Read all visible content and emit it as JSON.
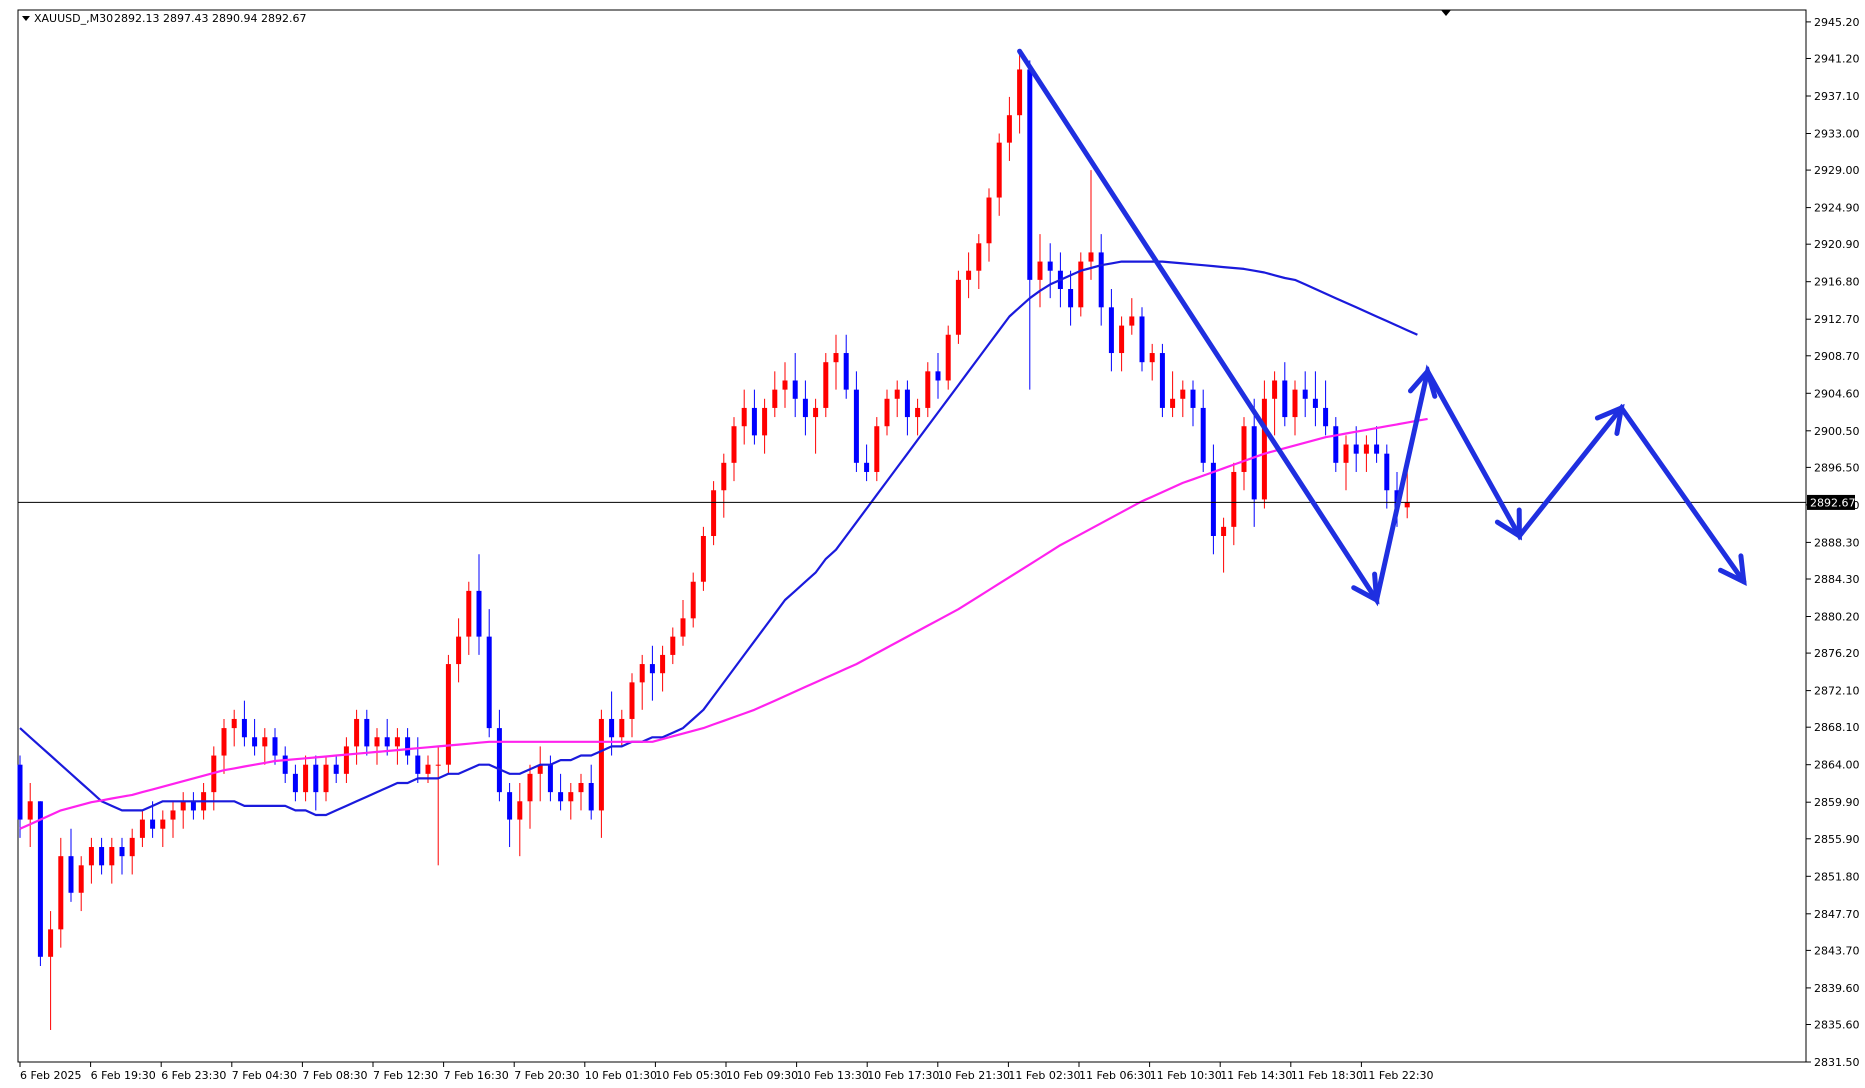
{
  "header": {
    "symbol": "XAUUSD_,M30",
    "ohlc": "2892.13 2897.43 2890.94 2892.67"
  },
  "current_price_label": "2892.67",
  "colors": {
    "bull": "#ff0000",
    "bear": "#0000ff",
    "ma_fast": "#1a1adc",
    "ma_slow": "#ff22ee",
    "projection": "#1f2fe0",
    "price_line": "#000000"
  },
  "chart_data": {
    "type": "candlestick",
    "title": "",
    "symbol": "XAUUSD",
    "timeframe": "M30",
    "xlabel": "",
    "ylabel": "",
    "ylim": [
      2831.5,
      2946.5
    ],
    "yticks": [
      "2945.20",
      "2941.20",
      "2937.10",
      "2933.00",
      "2929.00",
      "2924.90",
      "2920.90",
      "2916.80",
      "2912.70",
      "2908.70",
      "2904.60",
      "2900.50",
      "2896.50",
      "2892.40",
      "2888.30",
      "2884.30",
      "2880.20",
      "2876.20",
      "2872.10",
      "2868.10",
      "2864.00",
      "2859.90",
      "2855.90",
      "2851.80",
      "2847.70",
      "2843.70",
      "2839.60",
      "2835.60",
      "2831.50"
    ],
    "xticks": [
      "6 Feb 2025",
      "6 Feb 19:30",
      "6 Feb 23:30",
      "7 Feb 04:30",
      "7 Feb 08:30",
      "7 Feb 12:30",
      "7 Feb 16:30",
      "7 Feb 20:30",
      "10 Feb 01:30",
      "10 Feb 05:30",
      "10 Feb 09:30",
      "10 Feb 13:30",
      "10 Feb 17:30",
      "10 Feb 21:30",
      "11 Feb 02:30",
      "11 Feb 06:30",
      "11 Feb 10:30",
      "11 Feb 14:30",
      "11 Feb 18:30",
      "11 Feb 22:30"
    ],
    "current_price": 2892.67,
    "candles": [
      [
        2864,
        2865,
        2856,
        2858
      ],
      [
        2858,
        2862,
        2855,
        2860
      ],
      [
        2860,
        2860,
        2842,
        2843
      ],
      [
        2843,
        2848,
        2835,
        2846
      ],
      [
        2846,
        2856,
        2844,
        2854
      ],
      [
        2854,
        2857,
        2849,
        2850
      ],
      [
        2850,
        2854,
        2848,
        2853
      ],
      [
        2853,
        2856,
        2851,
        2855
      ],
      [
        2855,
        2856,
        2852,
        2853
      ],
      [
        2853,
        2856,
        2851,
        2855
      ],
      [
        2855,
        2856,
        2852,
        2854
      ],
      [
        2854,
        2857,
        2852,
        2856
      ],
      [
        2856,
        2859,
        2855,
        2858
      ],
      [
        2858,
        2860,
        2856,
        2857
      ],
      [
        2857,
        2859,
        2855,
        2858
      ],
      [
        2858,
        2860,
        2856,
        2859
      ],
      [
        2859,
        2861,
        2857,
        2860
      ],
      [
        2860,
        2861,
        2858,
        2859
      ],
      [
        2859,
        2862,
        2858,
        2861
      ],
      [
        2861,
        2866,
        2859,
        2865
      ],
      [
        2865,
        2869,
        2863,
        2868
      ],
      [
        2868,
        2870,
        2866,
        2869
      ],
      [
        2869,
        2871,
        2866,
        2867
      ],
      [
        2867,
        2869,
        2865,
        2866
      ],
      [
        2866,
        2868,
        2864,
        2867
      ],
      [
        2867,
        2868,
        2864,
        2865
      ],
      [
        2865,
        2866,
        2862,
        2863
      ],
      [
        2863,
        2864,
        2860,
        2861
      ],
      [
        2861,
        2865,
        2860,
        2864
      ],
      [
        2864,
        2865,
        2859,
        2861
      ],
      [
        2861,
        2865,
        2860,
        2864
      ],
      [
        2864,
        2865,
        2862,
        2863
      ],
      [
        2863,
        2867,
        2862,
        2866
      ],
      [
        2866,
        2870,
        2864,
        2869
      ],
      [
        2869,
        2870,
        2865,
        2866
      ],
      [
        2866,
        2868,
        2864,
        2867
      ],
      [
        2867,
        2869,
        2865,
        2866
      ],
      [
        2866,
        2868,
        2864,
        2867
      ],
      [
        2867,
        2868,
        2864,
        2865
      ],
      [
        2865,
        2867,
        2862,
        2863
      ],
      [
        2863,
        2865,
        2862,
        2864
      ],
      [
        2864,
        2866,
        2853,
        2864
      ],
      [
        2864,
        2876,
        2863,
        2875
      ],
      [
        2875,
        2880,
        2873,
        2878
      ],
      [
        2878,
        2884,
        2876,
        2883
      ],
      [
        2883,
        2887,
        2876,
        2878
      ],
      [
        2878,
        2881,
        2867,
        2868
      ],
      [
        2868,
        2870,
        2860,
        2861
      ],
      [
        2861,
        2862,
        2855,
        2858
      ],
      [
        2858,
        2862,
        2854,
        2860
      ],
      [
        2860,
        2864,
        2857,
        2863
      ],
      [
        2863,
        2866,
        2860,
        2864
      ],
      [
        2864,
        2865,
        2860,
        2861
      ],
      [
        2861,
        2863,
        2859,
        2860
      ],
      [
        2860,
        2862,
        2858,
        2861
      ],
      [
        2861,
        2863,
        2859,
        2862
      ],
      [
        2862,
        2864,
        2858,
        2859
      ],
      [
        2859,
        2870,
        2856,
        2869
      ],
      [
        2869,
        2872,
        2865,
        2867
      ],
      [
        2867,
        2870,
        2866,
        2869
      ],
      [
        2869,
        2874,
        2867,
        2873
      ],
      [
        2873,
        2876,
        2870,
        2875
      ],
      [
        2875,
        2877,
        2871,
        2874
      ],
      [
        2874,
        2877,
        2872,
        2876
      ],
      [
        2876,
        2879,
        2875,
        2878
      ],
      [
        2878,
        2882,
        2877,
        2880
      ],
      [
        2880,
        2885,
        2879,
        2884
      ],
      [
        2884,
        2890,
        2883,
        2889
      ],
      [
        2889,
        2895,
        2888,
        2894
      ],
      [
        2894,
        2898,
        2891,
        2897
      ],
      [
        2897,
        2902,
        2895,
        2901
      ],
      [
        2901,
        2905,
        2899,
        2903
      ],
      [
        2903,
        2905,
        2899,
        2900
      ],
      [
        2900,
        2904,
        2898,
        2903
      ],
      [
        2903,
        2907,
        2902,
        2905
      ],
      [
        2905,
        2908,
        2903,
        2906
      ],
      [
        2906,
        2909,
        2902,
        2904
      ],
      [
        2904,
        2906,
        2900,
        2902
      ],
      [
        2902,
        2904,
        2898,
        2903
      ],
      [
        2903,
        2909,
        2902,
        2908
      ],
      [
        2908,
        2911,
        2905,
        2909
      ],
      [
        2909,
        2911,
        2904,
        2905
      ],
      [
        2905,
        2907,
        2896,
        2897
      ],
      [
        2897,
        2899,
        2895,
        2896
      ],
      [
        2896,
        2902,
        2895,
        2901
      ],
      [
        2901,
        2905,
        2900,
        2904
      ],
      [
        2904,
        2906,
        2902,
        2905
      ],
      [
        2905,
        2906,
        2900,
        2902
      ],
      [
        2902,
        2904,
        2900,
        2903
      ],
      [
        2903,
        2908,
        2902,
        2907
      ],
      [
        2907,
        2909,
        2904,
        2906
      ],
      [
        2906,
        2912,
        2905,
        2911
      ],
      [
        2911,
        2918,
        2910,
        2917
      ],
      [
        2917,
        2920,
        2915,
        2918
      ],
      [
        2918,
        2922,
        2916,
        2921
      ],
      [
        2921,
        2927,
        2919,
        2926
      ],
      [
        2926,
        2933,
        2924,
        2932
      ],
      [
        2932,
        2937,
        2930,
        2935
      ],
      [
        2935,
        2942,
        2933,
        2940
      ],
      [
        2940,
        2941,
        2905,
        2917
      ],
      [
        2917,
        2922,
        2914,
        2919
      ],
      [
        2919,
        2921,
        2915,
        2918
      ],
      [
        2918,
        2920,
        2914,
        2916
      ],
      [
        2916,
        2918,
        2912,
        2914
      ],
      [
        2914,
        2920,
        2913,
        2919
      ],
      [
        2919,
        2929,
        2917,
        2920
      ],
      [
        2920,
        2922,
        2912,
        2914
      ],
      [
        2914,
        2916,
        2907,
        2909
      ],
      [
        2909,
        2913,
        2907,
        2912
      ],
      [
        2912,
        2915,
        2911,
        2913
      ],
      [
        2913,
        2914,
        2907,
        2908
      ],
      [
        2908,
        2910,
        2906,
        2909
      ],
      [
        2909,
        2910,
        2902,
        2903
      ],
      [
        2903,
        2907,
        2902,
        2904
      ],
      [
        2904,
        2906,
        2902,
        2905
      ],
      [
        2905,
        2906,
        2901,
        2903
      ],
      [
        2903,
        2905,
        2896,
        2897
      ],
      [
        2897,
        2899,
        2887,
        2889
      ],
      [
        2889,
        2891,
        2885,
        2890
      ],
      [
        2890,
        2897,
        2888,
        2896
      ],
      [
        2896,
        2902,
        2894,
        2901
      ],
      [
        2901,
        2904,
        2890,
        2893
      ],
      [
        2893,
        2906,
        2892,
        2904
      ],
      [
        2904,
        2907,
        2900,
        2906
      ],
      [
        2906,
        2908,
        2901,
        2902
      ],
      [
        2902,
        2906,
        2900,
        2905
      ],
      [
        2905,
        2907,
        2902,
        2904
      ],
      [
        2904,
        2907,
        2901,
        2903
      ],
      [
        2903,
        2906,
        2900,
        2901
      ],
      [
        2901,
        2902,
        2896,
        2897
      ],
      [
        2897,
        2900,
        2894,
        2899
      ],
      [
        2899,
        2901,
        2896,
        2898
      ],
      [
        2898,
        2900,
        2896,
        2899
      ],
      [
        2899,
        2901,
        2897,
        2898
      ],
      [
        2898,
        2899,
        2892,
        2894
      ],
      [
        2894,
        2896,
        2890,
        2892
      ],
      [
        2892.13,
        2897.43,
        2890.94,
        2892.67
      ]
    ],
    "series": [
      {
        "values": [
          2868,
          2867,
          2866,
          2865,
          2864,
          2863,
          2862,
          2861,
          2860,
          2859.5,
          2859,
          2859,
          2859,
          2859.5,
          2860,
          2860,
          2860,
          2860,
          2860,
          2860,
          2860,
          2860,
          2859.5,
          2859.5,
          2859.5,
          2859.5,
          2859.5,
          2859,
          2859,
          2858.5,
          2858.5,
          2859,
          2859.5,
          2860,
          2860.5,
          2861,
          2861.5,
          2862,
          2862,
          2862.5,
          2862.5,
          2862.5,
          2863,
          2863,
          2863.5,
          2864,
          2864,
          2863.5,
          2863,
          2863,
          2863.5,
          2864,
          2864,
          2864.5,
          2864.5,
          2865,
          2865,
          2865.5,
          2866,
          2866,
          2866.5,
          2866.5,
          2867,
          2867,
          2867.5,
          2868,
          2869,
          2870,
          2871.5,
          2873,
          2874.5,
          2876,
          2877.5,
          2879,
          2880.5,
          2882,
          2883,
          2884,
          2885,
          2886.5,
          2887.5,
          2889,
          2890.5,
          2892,
          2893.5,
          2895,
          2896.5,
          2898,
          2899.5,
          2901,
          2902.5,
          2904,
          2905.5,
          2907,
          2908.5,
          2910,
          2911.5,
          2913,
          2914,
          2915,
          2915.8,
          2916.5,
          2917,
          2917.5,
          2918,
          2918.3,
          2918.6,
          2918.8,
          2919,
          2919,
          2919,
          2919,
          2919,
          2918.9,
          2918.8,
          2918.7,
          2918.6,
          2918.5,
          2918.4,
          2918.3,
          2918.2,
          2918,
          2917.8,
          2917.5,
          2917.2,
          2917,
          2916.5,
          2916,
          2915.5,
          2915,
          2914.5,
          2914,
          2913.5,
          2913,
          2912.5,
          2912,
          2911.5,
          2911
        ]
      },
      {
        "values": [
          2857,
          2857.5,
          2858,
          2858.5,
          2859,
          2859.3,
          2859.6,
          2859.9,
          2860.1,
          2860.3,
          2860.5,
          2860.7,
          2861,
          2861.3,
          2861.6,
          2861.9,
          2862.2,
          2862.5,
          2862.8,
          2863.1,
          2863.4,
          2863.6,
          2863.8,
          2864,
          2864.2,
          2864.4,
          2864.5,
          2864.6,
          2864.7,
          2864.8,
          2864.9,
          2865,
          2865.1,
          2865.2,
          2865.3,
          2865.4,
          2865.5,
          2865.6,
          2865.7,
          2865.8,
          2865.9,
          2866,
          2866.1,
          2866.2,
          2866.3,
          2866.4,
          2866.5,
          2866.5,
          2866.5,
          2866.5,
          2866.5,
          2866.5,
          2866.5,
          2866.5,
          2866.5,
          2866.5,
          2866.5,
          2866.5,
          2866.5,
          2866.5,
          2866.5,
          2866.5,
          2866.5,
          2866.8,
          2867.1,
          2867.4,
          2867.7,
          2868,
          2868.4,
          2868.8,
          2869.2,
          2869.6,
          2870,
          2870.5,
          2871,
          2871.5,
          2872,
          2872.5,
          2873,
          2873.5,
          2874,
          2874.5,
          2875,
          2875.6,
          2876.2,
          2876.8,
          2877.4,
          2878,
          2878.6,
          2879.2,
          2879.8,
          2880.4,
          2881,
          2881.7,
          2882.4,
          2883.1,
          2883.8,
          2884.5,
          2885.2,
          2885.9,
          2886.6,
          2887.3,
          2888,
          2888.6,
          2889.2,
          2889.8,
          2890.4,
          2891,
          2891.6,
          2892.2,
          2892.8,
          2893.3,
          2893.8,
          2894.3,
          2894.8,
          2895.2,
          2895.6,
          2896,
          2896.4,
          2896.8,
          2897.2,
          2897.6,
          2898,
          2898.3,
          2898.6,
          2898.9,
          2899.2,
          2899.5,
          2899.8,
          2900,
          2900.2,
          2900.4,
          2900.6,
          2900.8,
          2901,
          2901.2,
          2901.4,
          2901.6,
          2901.8
        ]
      }
    ],
    "annotations": {
      "projection_path": [
        [
          98,
          2942
        ],
        [
          133,
          2882
        ],
        [
          138,
          2907
        ],
        [
          147,
          2889
        ],
        [
          157,
          2903
        ],
        [
          169,
          2884
        ]
      ]
    }
  }
}
